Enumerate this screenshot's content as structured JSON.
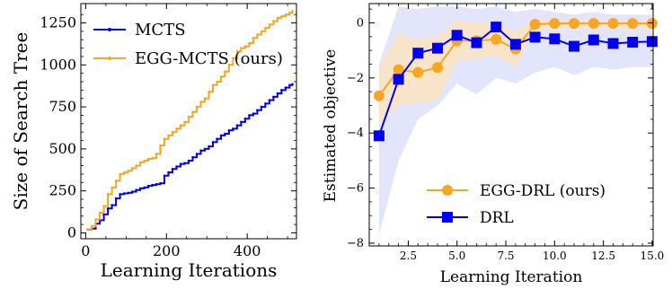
{
  "chart_data": [
    {
      "type": "line",
      "xlabel": "Learning Iterations",
      "ylabel": "Size of Search Tree",
      "xlim": [
        -12,
        522
      ],
      "ylim": [
        -35,
        1365
      ],
      "xticks": [
        0,
        200,
        400
      ],
      "yticks": [
        0,
        250,
        500,
        750,
        1000,
        1250
      ],
      "grid": false,
      "legend_position": "top-left",
      "series": [
        {
          "name": "MCTS",
          "color": "#0000ee",
          "marker": "dot",
          "x": [
            5,
            15,
            25,
            35,
            45,
            55,
            65,
            75,
            85,
            95,
            105,
            115,
            125,
            135,
            145,
            155,
            165,
            175,
            185,
            195,
            205,
            215,
            225,
            235,
            245,
            255,
            265,
            275,
            285,
            295,
            305,
            315,
            325,
            335,
            345,
            355,
            365,
            375,
            385,
            395,
            405,
            415,
            425,
            435,
            445,
            455,
            465,
            475,
            485,
            495,
            505,
            512
          ],
          "values": [
            20,
            25,
            55,
            75,
            110,
            145,
            165,
            205,
            230,
            235,
            238,
            245,
            255,
            265,
            270,
            280,
            285,
            290,
            295,
            340,
            360,
            380,
            395,
            410,
            415,
            430,
            450,
            470,
            490,
            500,
            515,
            540,
            560,
            580,
            590,
            610,
            620,
            640,
            660,
            680,
            700,
            710,
            730,
            750,
            770,
            790,
            810,
            830,
            850,
            865,
            880,
            885
          ]
        },
        {
          "name": "EGG-MCTS (ours)",
          "color": "#f5a623",
          "marker": "dot",
          "x": [
            5,
            15,
            25,
            35,
            45,
            55,
            65,
            75,
            85,
            95,
            105,
            115,
            125,
            135,
            145,
            155,
            165,
            175,
            185,
            195,
            205,
            215,
            225,
            235,
            245,
            255,
            265,
            275,
            285,
            295,
            305,
            315,
            325,
            335,
            345,
            355,
            365,
            375,
            385,
            395,
            405,
            415,
            425,
            435,
            445,
            455,
            465,
            475,
            485,
            495,
            505,
            512
          ],
          "values": [
            20,
            40,
            80,
            120,
            160,
            230,
            270,
            310,
            350,
            360,
            370,
            385,
            400,
            420,
            430,
            440,
            445,
            470,
            520,
            560,
            580,
            600,
            620,
            640,
            660,
            690,
            720,
            750,
            780,
            800,
            840,
            880,
            900,
            930,
            960,
            1000,
            1040,
            1080,
            1100,
            1110,
            1130,
            1160,
            1180,
            1200,
            1220,
            1240,
            1260,
            1280,
            1290,
            1300,
            1310,
            1320
          ]
        }
      ]
    },
    {
      "type": "line",
      "xlabel": "Learning Iteration",
      "ylabel": "Estimated objective",
      "xlim": [
        0.5,
        15.05
      ],
      "ylim": [
        -8.1,
        0.7
      ],
      "xticks": [
        2.5,
        5.0,
        7.5,
        10.0,
        12.5,
        15.0
      ],
      "xtick_labels": [
        "2.5",
        "5.0",
        "7.5",
        "10.0",
        "12.5",
        "15.0"
      ],
      "yticks": [
        0,
        -2,
        -4,
        -6,
        -8
      ],
      "ytick_labels": [
        "0",
        "−2",
        "−4",
        "−6",
        "−8"
      ],
      "grid": false,
      "legend_position": "bottom-right",
      "series": [
        {
          "name": "EGG-DRL (ours)",
          "color": "#f5a623",
          "band_color": "#fde3b8",
          "marker": "circle",
          "x": [
            1,
            2,
            3,
            4,
            5,
            6,
            7,
            8,
            9,
            10,
            11,
            12,
            13,
            14,
            15
          ],
          "values": [
            -2.65,
            -1.7,
            -1.8,
            -1.62,
            -0.65,
            -0.65,
            -0.6,
            -0.95,
            -0.05,
            -0.02,
            -0.02,
            -0.02,
            -0.02,
            -0.02,
            -0.02
          ],
          "lower": [
            -3.7,
            -3.0,
            -2.9,
            -2.8,
            -1.4,
            -1.3,
            -1.2,
            -1.6,
            -0.3,
            -0.2,
            -0.2,
            -0.2,
            -0.2,
            -0.2,
            -0.2
          ],
          "upper": [
            -1.6,
            -0.4,
            -0.6,
            -0.5,
            0.1,
            0.0,
            0.0,
            -0.3,
            0.1,
            0.1,
            0.1,
            0.1,
            0.1,
            0.1,
            0.1
          ]
        },
        {
          "name": "DRL",
          "color": "#0000ee",
          "band_color": "#d9dcfb",
          "marker": "square",
          "x": [
            1,
            2,
            3,
            4,
            5,
            6,
            7,
            8,
            9,
            10,
            11,
            12,
            13,
            14,
            15
          ],
          "values": [
            -4.1,
            -2.05,
            -1.1,
            -0.92,
            -0.45,
            -0.72,
            -0.15,
            -0.78,
            -0.52,
            -0.58,
            -0.85,
            -0.62,
            -0.75,
            -0.7,
            -0.68
          ],
          "lower": [
            -7.7,
            -5.0,
            -3.5,
            -3.0,
            -2.2,
            -2.6,
            -2.0,
            -2.2,
            -1.8,
            -1.6,
            -1.9,
            -1.6,
            -1.7,
            -1.6,
            -1.6
          ],
          "upper": [
            -1.5,
            0.6,
            0.5,
            0.6,
            0.6,
            0.5,
            0.6,
            0.4,
            0.5,
            0.4,
            0.3,
            0.4,
            0.3,
            0.3,
            0.3
          ]
        }
      ]
    }
  ]
}
